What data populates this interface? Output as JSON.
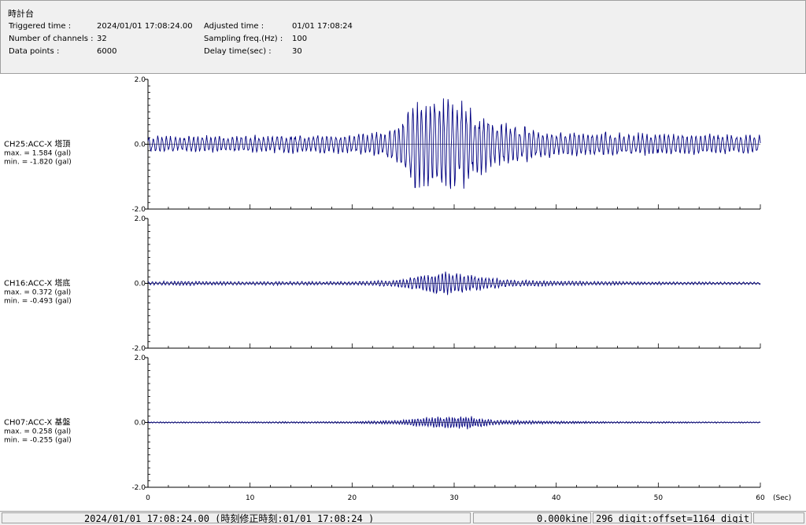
{
  "header": {
    "title": "時計台",
    "triggered_label": "Triggered time :",
    "triggered_value": "2024/01/01 17:08:24.00",
    "channels_label": "Number of channels :",
    "channels_value": "32",
    "datapoints_label": "Data points :",
    "datapoints_value": "6000",
    "adjusted_label": "Adjusted time :",
    "adjusted_value": "01/01 17:08:24",
    "sampling_label": "Sampling freq.(Hz) :",
    "sampling_value": "100",
    "delay_label": "Delay time(sec) :",
    "delay_value": "30"
  },
  "status": {
    "datetime": "2024/01/01 17:08:24.00 (時刻修正時刻:01/01 17:08:24 )",
    "kine": "0.000kine",
    "digit": "296 digit:offset=1164 digit"
  },
  "chart_data": {
    "type": "line",
    "x": {
      "unit": "(Sec)",
      "range": [
        0,
        60
      ],
      "ticks": [
        "0",
        "10",
        "20",
        "30",
        "40",
        "50",
        "60"
      ]
    },
    "y_ticks": [
      "2.0",
      "0.0",
      "-2.0"
    ],
    "ylim": [
      -2.0,
      2.0
    ],
    "line_color": "#000080",
    "duration_s": 60,
    "panels": [
      {
        "name": "CH25:ACC-X 塔頂",
        "max_text": "max. = 1.584 (gal)",
        "min_text": "min. = -1.820 (gal)",
        "max": 1.584,
        "min": -1.82,
        "envelope": [
          [
            0,
            0.25
          ],
          [
            10,
            0.28
          ],
          [
            20,
            0.3
          ],
          [
            23,
            0.4
          ],
          [
            25,
            0.8
          ],
          [
            26,
            1.5
          ],
          [
            30,
            1.6
          ],
          [
            32,
            1.0
          ],
          [
            36,
            0.6
          ],
          [
            40,
            0.4
          ],
          [
            50,
            0.35
          ],
          [
            60,
            0.3
          ]
        ],
        "freq_hz": 2.3
      },
      {
        "name": "CH16:ACC-X 塔底",
        "max_text": "max. = 0.372 (gal)",
        "min_text": "min. = -0.493 (gal)",
        "max": 0.372,
        "min": -0.493,
        "envelope": [
          [
            0,
            0.05
          ],
          [
            3,
            0.08
          ],
          [
            6,
            0.06
          ],
          [
            20,
            0.06
          ],
          [
            24,
            0.1
          ],
          [
            26,
            0.2
          ],
          [
            29,
            0.4
          ],
          [
            32,
            0.25
          ],
          [
            36,
            0.1
          ],
          [
            45,
            0.06
          ],
          [
            60,
            0.04
          ]
        ],
        "freq_hz": 2.8
      },
      {
        "name": "CH07:ACC-X 基盤",
        "max_text": "max. = 0.258 (gal)",
        "min_text": "min. = -0.255 (gal)",
        "max": 0.258,
        "min": -0.255,
        "envelope": [
          [
            0,
            0.02
          ],
          [
            20,
            0.03
          ],
          [
            25,
            0.08
          ],
          [
            27,
            0.16
          ],
          [
            31,
            0.22
          ],
          [
            34,
            0.08
          ],
          [
            37,
            0.06
          ],
          [
            45,
            0.03
          ],
          [
            60,
            0.02
          ]
        ],
        "freq_hz": 3.5
      }
    ]
  }
}
